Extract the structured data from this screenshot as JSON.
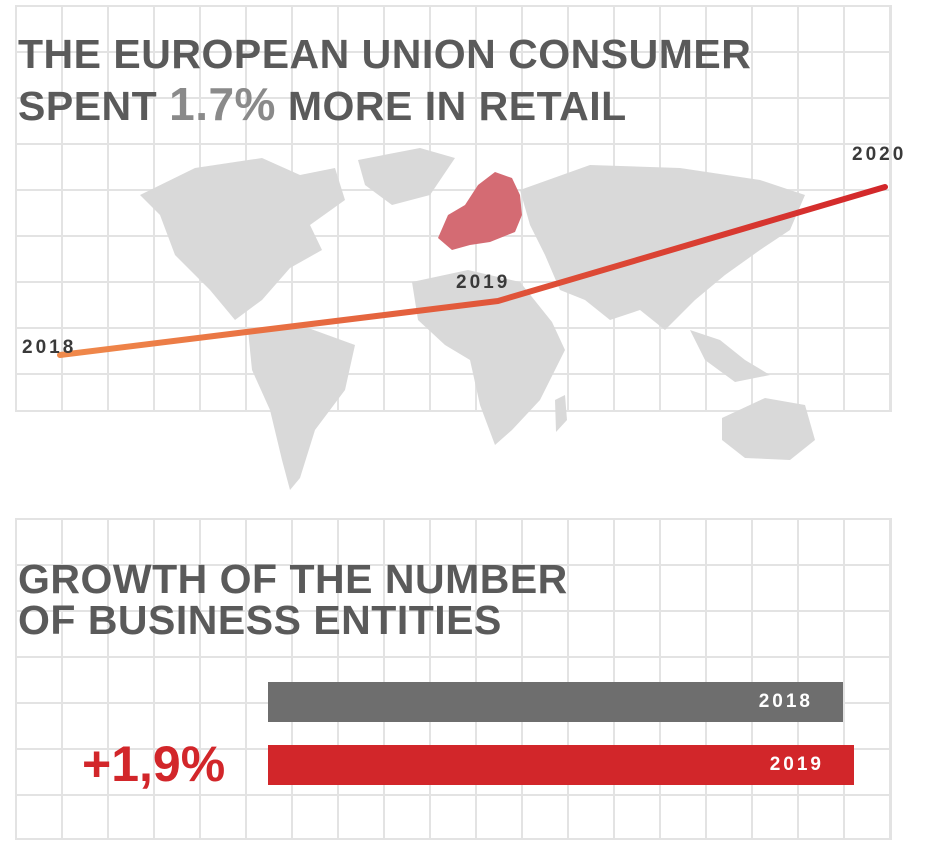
{
  "header": {
    "line1": "THE EUROPEAN UNION CONSUMER",
    "line2_prefix": "SPENT",
    "percent": "1.7%",
    "line2_suffix": "MORE IN RETAIL"
  },
  "growth_section": {
    "line1": "GROWTH OF THE NUMBER",
    "line2": "OF BUSINESS ENTITIES",
    "percent": "+1,9%"
  },
  "colors": {
    "accent": "#d2262a",
    "line_start": "#f08a4b",
    "dark_bar": "#6e6e6e",
    "map": "#d9d9d9",
    "europe": "#d46b73"
  },
  "chart_data": [
    {
      "type": "line",
      "x": [
        "2018",
        "2019",
        "2020"
      ],
      "series": [
        {
          "values": [
            1.0,
            1.9,
            3.8
          ]
        }
      ],
      "ylim": [
        0,
        4.5
      ],
      "grid": true
    },
    {
      "type": "bar",
      "orientation": "horizontal",
      "categories": [
        "2018",
        "2019"
      ],
      "values": [
        100,
        101.9
      ],
      "xlim": [
        0,
        103
      ],
      "grid": true
    }
  ]
}
